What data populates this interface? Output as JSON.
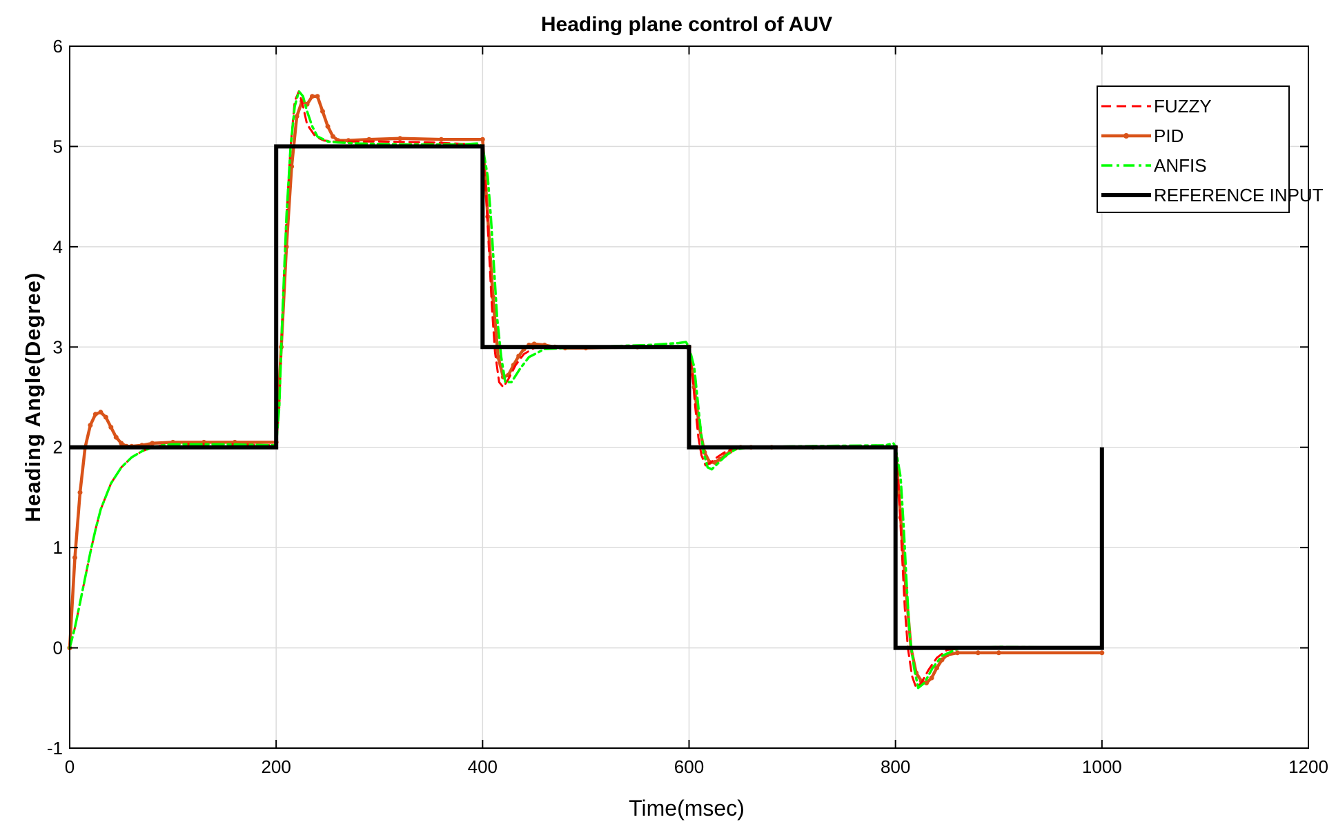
{
  "chart_data": {
    "type": "line",
    "title": "Heading plane control of AUV",
    "xlabel": "Time(msec)",
    "ylabel": "Heading Angle(Degree)",
    "xlim": [
      0,
      1200
    ],
    "ylim": [
      -1,
      6
    ],
    "xticks": [
      0,
      200,
      400,
      600,
      800,
      1000,
      1200
    ],
    "yticks": [
      -1,
      0,
      1,
      2,
      3,
      4,
      5,
      6
    ],
    "xtick_labels": [
      "0",
      "200",
      "400",
      "600",
      "800",
      "1000",
      "1200"
    ],
    "ytick_labels": [
      "-1",
      "0",
      "1",
      "2",
      "3",
      "4",
      "5",
      "6"
    ],
    "grid": true,
    "legend_position": "top-right",
    "series": [
      {
        "name": "FUZZY",
        "color": "#ff0000",
        "style": "dashed",
        "x": [
          0,
          5,
          10,
          15,
          20,
          25,
          30,
          40,
          50,
          60,
          70,
          80,
          90,
          100,
          120,
          150,
          200,
          203,
          206,
          210,
          214,
          218,
          222,
          226,
          230,
          238,
          246,
          255,
          270,
          300,
          350,
          395,
          400,
          403,
          406,
          409,
          412,
          416,
          420,
          425,
          432,
          440,
          450,
          470,
          500,
          550,
          595,
          600,
          603,
          606,
          609,
          612,
          616,
          620,
          627,
          636,
          650,
          680,
          750,
          795,
          800,
          803,
          806,
          809,
          812,
          816,
          820,
          825,
          832,
          840,
          850,
          870,
          900,
          1000
        ],
        "y": [
          0,
          0.2,
          0.45,
          0.7,
          0.95,
          1.18,
          1.38,
          1.64,
          1.8,
          1.9,
          1.96,
          2.0,
          2.02,
          2.03,
          2.03,
          2.03,
          2.02,
          2.4,
          3.3,
          4.3,
          5.0,
          5.45,
          5.55,
          5.4,
          5.22,
          5.1,
          5.06,
          5.05,
          5.05,
          5.05,
          5.04,
          5.02,
          4.95,
          4.6,
          4.0,
          3.4,
          2.95,
          2.65,
          2.6,
          2.68,
          2.82,
          2.93,
          2.99,
          3.01,
          3.0,
          3.0,
          3.0,
          2.98,
          2.75,
          2.4,
          2.1,
          1.92,
          1.82,
          1.84,
          1.9,
          1.96,
          2.0,
          2.0,
          2.0,
          2.0,
          1.98,
          1.6,
          1.0,
          0.4,
          0.0,
          -0.28,
          -0.4,
          -0.35,
          -0.22,
          -0.1,
          -0.02,
          0.0,
          0.01,
          0.0
        ]
      },
      {
        "name": "PID",
        "color": "#d95319",
        "style": "solid-marker",
        "x": [
          0,
          5,
          10,
          15,
          20,
          25,
          30,
          35,
          40,
          45,
          50,
          55,
          60,
          70,
          80,
          100,
          130,
          160,
          200,
          205,
          210,
          215,
          220,
          225,
          230,
          235,
          240,
          245,
          250,
          255,
          260,
          270,
          290,
          320,
          360,
          400,
          405,
          410,
          415,
          420,
          425,
          430,
          435,
          440,
          445,
          450,
          460,
          470,
          480,
          500,
          550,
          600,
          605,
          610,
          615,
          620,
          625,
          630,
          635,
          640,
          645,
          650,
          660,
          680,
          720,
          800,
          805,
          810,
          815,
          820,
          825,
          830,
          835,
          840,
          845,
          850,
          860,
          880,
          900,
          1000
        ],
        "y": [
          0,
          0.9,
          1.55,
          2.0,
          2.22,
          2.33,
          2.35,
          2.3,
          2.2,
          2.1,
          2.04,
          2.01,
          2.01,
          2.02,
          2.04,
          2.05,
          2.05,
          2.05,
          2.05,
          3.0,
          4.0,
          4.8,
          5.3,
          5.45,
          5.42,
          5.5,
          5.5,
          5.35,
          5.2,
          5.1,
          5.06,
          5.06,
          5.07,
          5.08,
          5.07,
          5.07,
          4.3,
          3.5,
          2.9,
          2.7,
          2.72,
          2.82,
          2.91,
          2.98,
          3.02,
          3.03,
          3.02,
          3.0,
          2.99,
          2.99,
          3.0,
          3.0,
          2.6,
          2.2,
          1.95,
          1.85,
          1.85,
          1.88,
          1.92,
          1.96,
          1.99,
          2.0,
          2.0,
          2.0,
          2.0,
          2.0,
          1.3,
          0.6,
          0.0,
          -0.25,
          -0.33,
          -0.35,
          -0.3,
          -0.2,
          -0.12,
          -0.07,
          -0.05,
          -0.05,
          -0.05,
          -0.05
        ]
      },
      {
        "name": "ANFIS",
        "color": "#00ff00",
        "style": "dashdot",
        "x": [
          0,
          5,
          10,
          15,
          20,
          25,
          30,
          40,
          50,
          60,
          70,
          80,
          90,
          100,
          120,
          150,
          200,
          203,
          206,
          210,
          214,
          218,
          222,
          226,
          230,
          235,
          240,
          250,
          260,
          280,
          320,
          380,
          395,
          400,
          405,
          408,
          411,
          414,
          418,
          422,
          428,
          436,
          445,
          460,
          500,
          560,
          590,
          597,
          600,
          605,
          608,
          611,
          614,
          618,
          622,
          628,
          636,
          645,
          660,
          700,
          790,
          798,
          800,
          805,
          808,
          811,
          814,
          818,
          822,
          828,
          836,
          845,
          860,
          900,
          1000
        ],
        "y": [
          0,
          0.2,
          0.45,
          0.7,
          0.95,
          1.18,
          1.38,
          1.64,
          1.8,
          1.9,
          1.96,
          2.0,
          2.02,
          2.03,
          2.03,
          2.03,
          2.02,
          2.4,
          3.3,
          4.3,
          5.0,
          5.4,
          5.55,
          5.5,
          5.35,
          5.2,
          5.1,
          5.05,
          5.04,
          5.03,
          5.02,
          5.02,
          5.03,
          5.0,
          4.7,
          4.3,
          3.8,
          3.3,
          2.9,
          2.65,
          2.65,
          2.78,
          2.9,
          2.98,
          3.0,
          3.02,
          3.04,
          3.05,
          3.0,
          2.8,
          2.5,
          2.2,
          1.95,
          1.8,
          1.78,
          1.84,
          1.92,
          1.98,
          2.0,
          2.01,
          2.02,
          2.04,
          2.0,
          1.7,
          1.2,
          0.6,
          0.1,
          -0.2,
          -0.4,
          -0.35,
          -0.2,
          -0.08,
          -0.01,
          0.01,
          0.0
        ]
      },
      {
        "name": "REFERENCE INPUT",
        "color": "#000000",
        "style": "solid-thick",
        "x": [
          0,
          200,
          200,
          400,
          400,
          600,
          600,
          800,
          800,
          1000,
          1000
        ],
        "y": [
          2,
          2,
          5,
          5,
          3,
          3,
          2,
          2,
          0,
          0,
          2
        ]
      }
    ]
  }
}
